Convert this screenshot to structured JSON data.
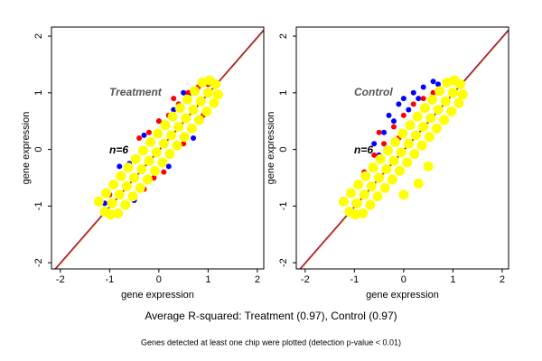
{
  "chart_data": [
    {
      "type": "scatter",
      "title": "Treatment",
      "annotation": "n=6",
      "xlabel": "gene expression",
      "ylabel": "gene expression",
      "xlim": [
        -2.18,
        2.13
      ],
      "ylim": [
        -2.11,
        2.16
      ],
      "xticks": [
        -2,
        -1,
        0,
        1,
        2
      ],
      "yticks": [
        -2,
        -1,
        0,
        1,
        2
      ],
      "reference_lines": [
        "#ff0000",
        "#0000ff",
        "#ffa500"
      ],
      "series": [
        {
          "name": "blue",
          "color": "#0000ff",
          "x": [
            -1.1,
            -0.9,
            -0.6,
            -0.3,
            0.0,
            0.3,
            0.6,
            0.9,
            1.1,
            -0.5,
            0.2,
            0.7,
            -0.8,
            0.5
          ],
          "values": [
            -0.95,
            -0.6,
            -0.25,
            0.25,
            0.5,
            0.7,
            0.95,
            1.15,
            1.2,
            -0.9,
            -0.3,
            0.2,
            -0.3,
            1.0
          ]
        },
        {
          "name": "red",
          "color": "#ff0000",
          "x": [
            -1.0,
            -0.8,
            -0.6,
            -0.4,
            -0.2,
            0.0,
            0.2,
            0.4,
            0.6,
            0.8,
            1.0,
            -0.7,
            -0.3,
            0.1,
            0.5,
            0.9,
            -0.1,
            0.3
          ],
          "values": [
            -0.8,
            -0.5,
            -0.3,
            0.2,
            0.3,
            0.5,
            0.6,
            0.8,
            1.0,
            1.1,
            1.15,
            -1.0,
            -0.7,
            -0.4,
            0.1,
            0.6,
            -0.5,
            0.9
          ]
        },
        {
          "name": "yellow",
          "color": "#ffff00",
          "x": [
            -1.1,
            -0.95,
            -0.8,
            -0.65,
            -0.5,
            -0.35,
            -0.2,
            -0.05,
            0.1,
            0.25,
            0.4,
            0.55,
            0.7,
            0.85,
            1.0,
            1.15,
            -1.22,
            -1.07,
            -0.92,
            -0.77,
            -0.62,
            -0.47,
            -0.32,
            -0.17,
            -0.02,
            0.13,
            0.28,
            0.43,
            0.58,
            0.73,
            0.88,
            1.03,
            -0.98,
            -0.83,
            -0.68,
            -0.53,
            -0.38,
            -0.23,
            -0.08,
            0.07,
            0.22,
            0.37,
            0.52,
            0.67,
            0.82,
            0.97,
            1.12,
            1.2
          ],
          "values": [
            -1.1,
            -0.95,
            -0.8,
            -0.65,
            -0.5,
            -0.35,
            -0.2,
            -0.05,
            0.1,
            0.25,
            0.4,
            0.55,
            0.7,
            0.85,
            1.0,
            1.15,
            -0.92,
            -0.77,
            -0.62,
            -0.47,
            -0.32,
            -0.17,
            -0.02,
            0.13,
            0.28,
            0.43,
            0.58,
            0.73,
            0.88,
            1.03,
            1.18,
            1.22,
            -1.15,
            -1.13,
            -0.98,
            -0.83,
            -0.68,
            -0.53,
            -0.38,
            -0.23,
            -0.08,
            0.07,
            0.22,
            0.37,
            0.52,
            0.67,
            0.82,
            0.97
          ]
        }
      ]
    },
    {
      "type": "scatter",
      "title": "Control",
      "annotation": "n=6",
      "xlabel": "gene expression",
      "ylabel": "gene expression",
      "xlim": [
        -2.18,
        2.13
      ],
      "ylim": [
        -2.11,
        2.16
      ],
      "xticks": [
        -2,
        -1,
        0,
        1,
        2
      ],
      "yticks": [
        -2,
        -1,
        0,
        1,
        2
      ],
      "reference_lines": [
        "#ff0000",
        "#0000ff",
        "#ffa500"
      ],
      "series": [
        {
          "name": "blue",
          "color": "#0000ff",
          "x": [
            -0.6,
            -0.4,
            -0.3,
            -0.1,
            0.0,
            0.2,
            0.4,
            0.6,
            -0.2,
            0.1,
            -0.5,
            0.3,
            0.7
          ],
          "values": [
            0.1,
            0.3,
            0.6,
            0.8,
            0.9,
            1.0,
            1.1,
            1.2,
            0.5,
            0.7,
            -0.1,
            0.9,
            1.15
          ]
        },
        {
          "name": "red",
          "color": "#ff0000",
          "x": [
            -1.1,
            -0.8,
            -0.6,
            -0.4,
            -0.2,
            0.0,
            0.2,
            0.4,
            -0.5,
            -0.1,
            -1.0,
            0.6
          ],
          "values": [
            -1.1,
            -0.4,
            -0.1,
            0.1,
            0.4,
            0.6,
            0.8,
            0.9,
            0.3,
            0.2,
            -0.95,
            1.0
          ]
        },
        {
          "name": "yellow",
          "color": "#ffff00",
          "x": [
            -1.1,
            -0.95,
            -0.8,
            -0.65,
            -0.5,
            -0.35,
            -0.2,
            -0.05,
            0.1,
            0.25,
            0.4,
            0.55,
            0.7,
            0.85,
            1.0,
            1.15,
            -1.22,
            -1.07,
            -0.92,
            -0.77,
            -0.62,
            -0.47,
            -0.32,
            -0.17,
            -0.02,
            0.13,
            0.28,
            0.43,
            0.58,
            0.73,
            0.88,
            1.03,
            -0.98,
            -0.83,
            -0.68,
            -0.53,
            -0.38,
            -0.23,
            -0.08,
            0.07,
            0.22,
            0.37,
            0.52,
            0.67,
            0.82,
            0.97,
            1.12,
            1.2,
            0.0,
            0.5,
            0.3
          ],
          "values": [
            -1.1,
            -0.95,
            -0.8,
            -0.65,
            -0.5,
            -0.35,
            -0.2,
            -0.05,
            0.1,
            0.25,
            0.4,
            0.55,
            0.7,
            0.85,
            1.0,
            1.15,
            -0.92,
            -0.77,
            -0.62,
            -0.47,
            -0.32,
            -0.17,
            -0.02,
            0.13,
            0.28,
            0.43,
            0.58,
            0.73,
            0.88,
            1.03,
            1.18,
            1.22,
            -1.15,
            -1.13,
            -0.98,
            -0.83,
            -0.68,
            -0.53,
            -0.38,
            -0.23,
            -0.08,
            0.07,
            0.22,
            0.37,
            0.52,
            0.67,
            0.82,
            0.97,
            -0.8,
            -0.3,
            -0.6
          ]
        }
      ]
    }
  ],
  "summary": "Average R-squared: Treatment (0.97), Control (0.97)",
  "note": "Genes detected at least one chip were plotted (detection p-value < 0.01)"
}
